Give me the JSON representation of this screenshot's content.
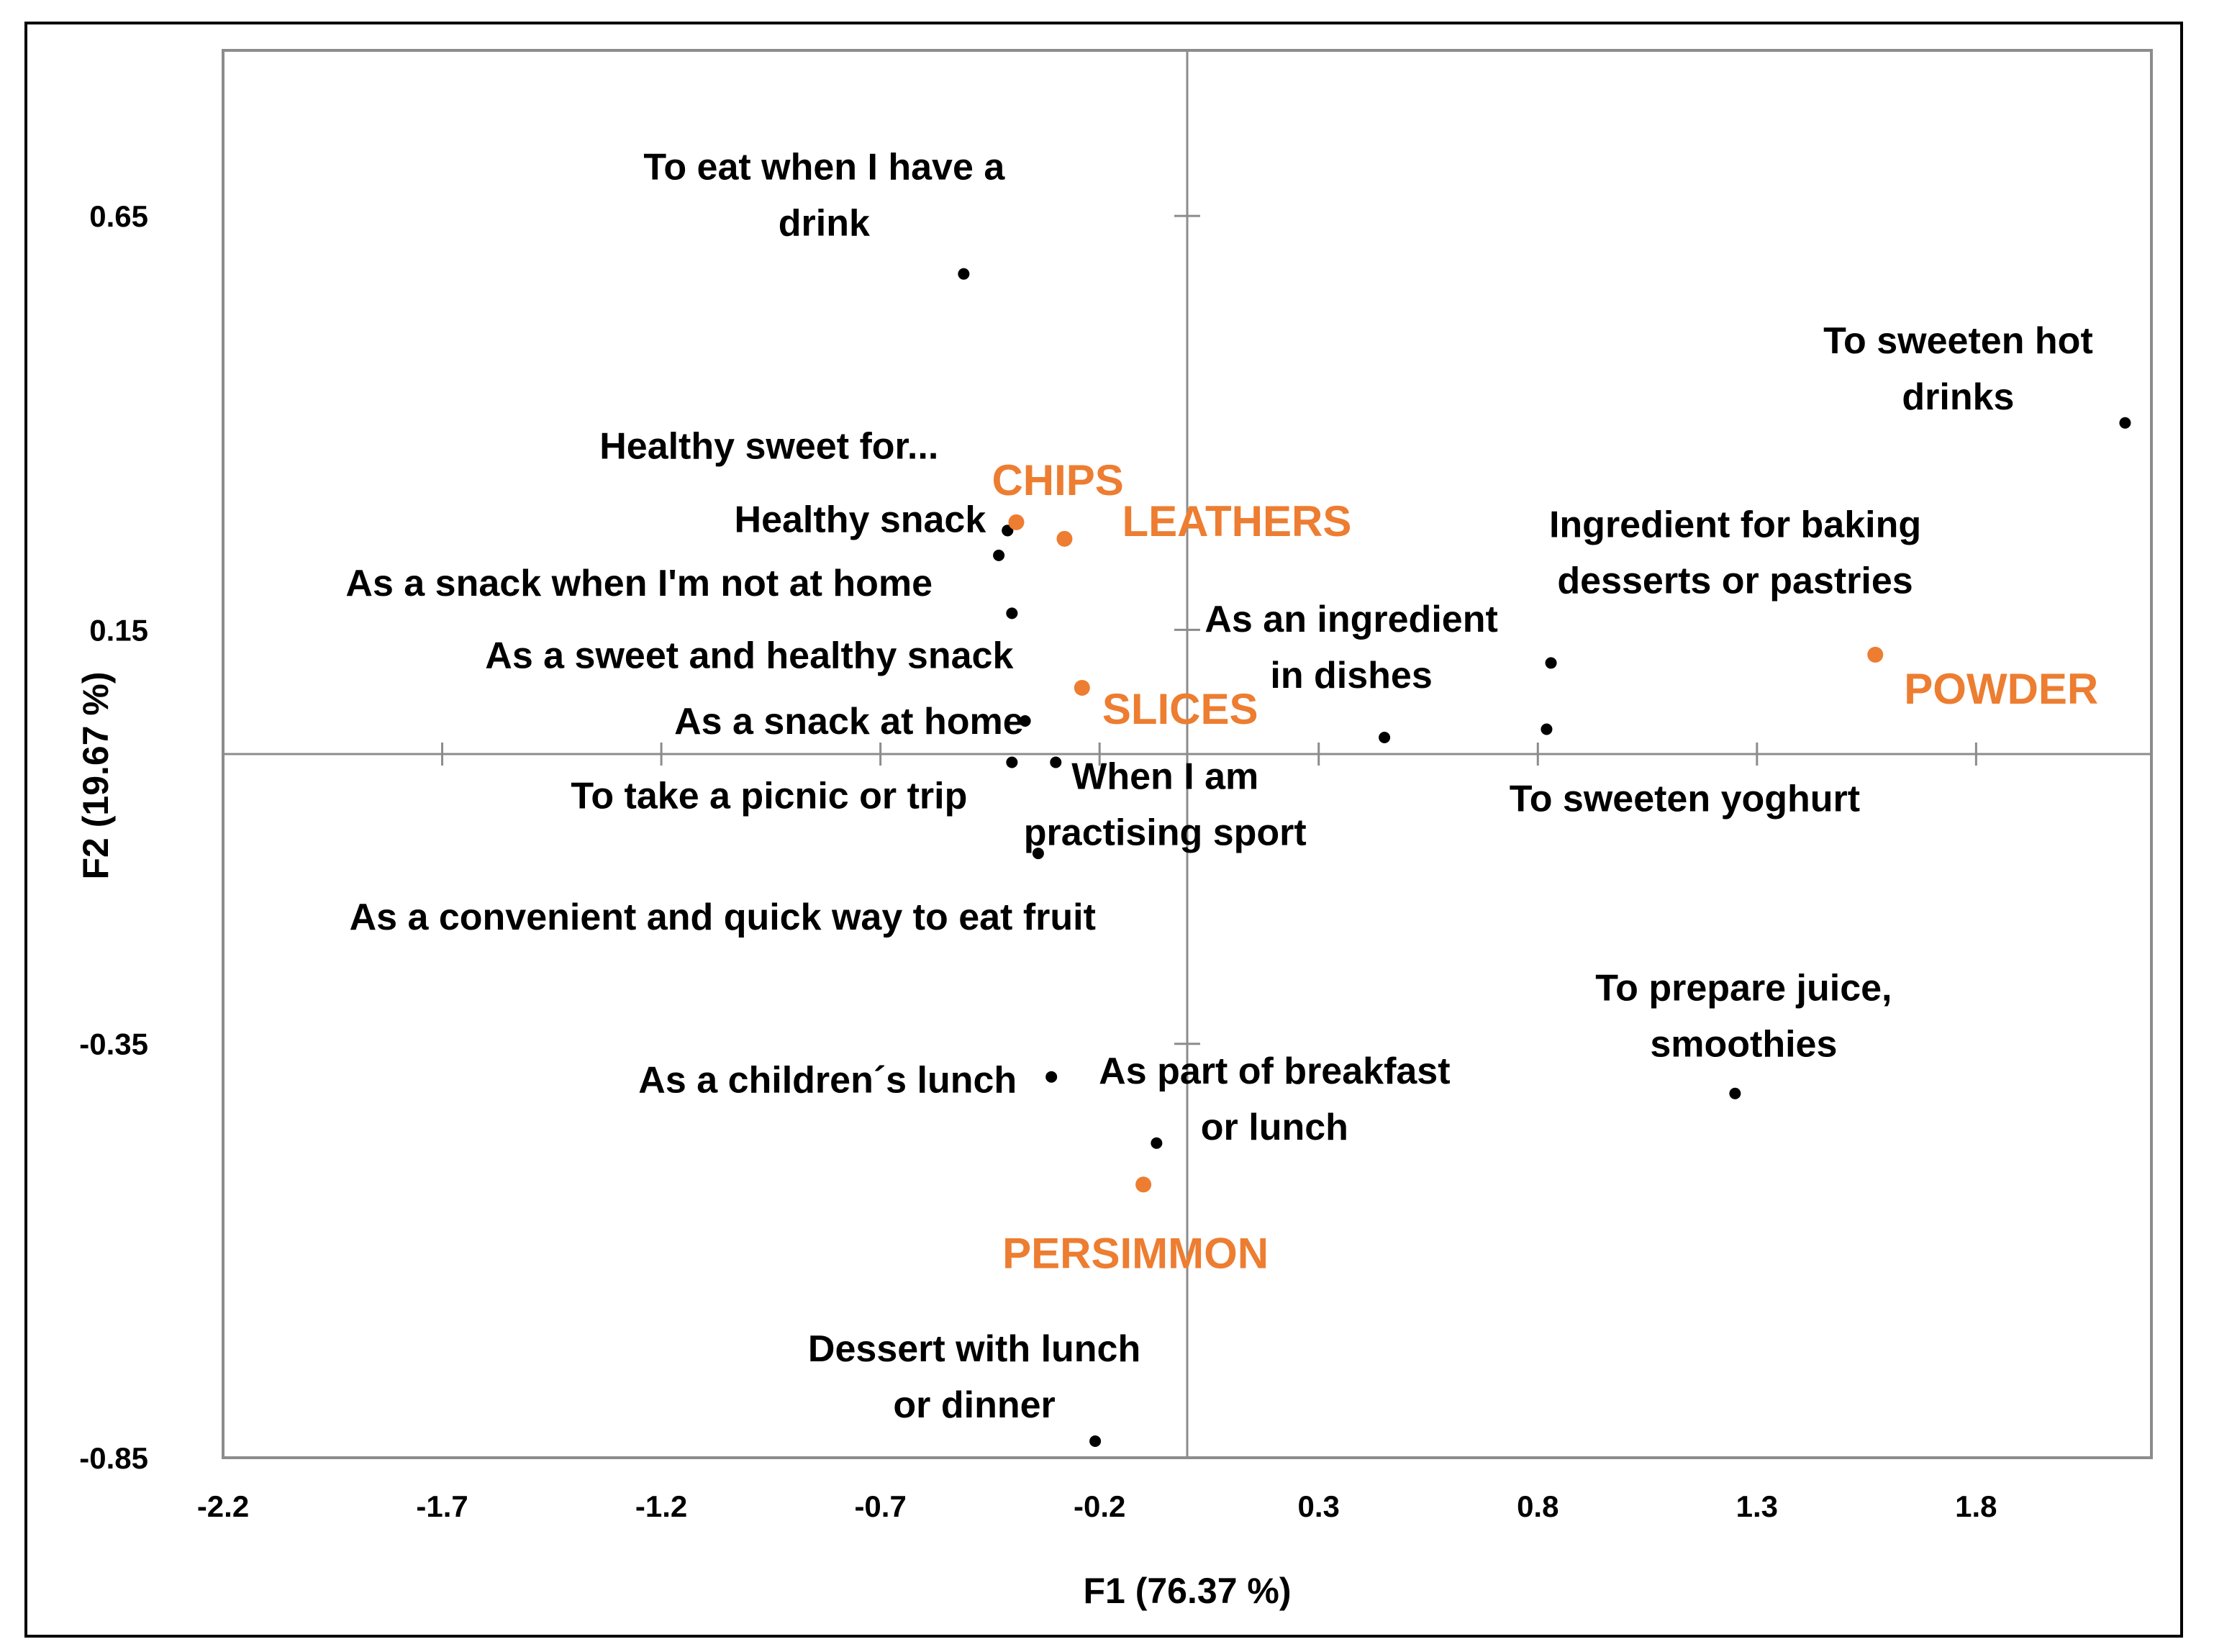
{
  "chart_data": {
    "type": "scatter",
    "xlabel": "F1 (76.37 %)",
    "ylabel": "F2 (19.67 %)",
    "xlim": [
      -2.2,
      2.2
    ],
    "ylim": [
      -0.85,
      0.85
    ],
    "x_ticks": [
      -2.2,
      -1.7,
      -1.2,
      -0.7,
      -0.2,
      0.3,
      0.8,
      1.3,
      1.8
    ],
    "x_tick_labels": [
      "-2.2",
      "-1.7",
      "-1.2",
      "-0.7",
      "-0.2",
      "0.3",
      "0.8",
      "1.3",
      "1.8"
    ],
    "y_ticks": [
      0.65,
      0.15,
      -0.35,
      -0.85
    ],
    "y_tick_labels": [
      "0.65",
      "0.15",
      "-0.35",
      "-0.85"
    ],
    "colors": {
      "usage": "#000000",
      "product": "#ED7D31"
    },
    "series": [
      {
        "group": "usage",
        "points": [
          {
            "label": [
              "To eat when I have a",
              "drink"
            ],
            "x": -0.51,
            "y": 0.58
          },
          {
            "label": [
              "To sweeten hot",
              "drinks"
            ],
            "x": 2.14,
            "y": 0.4
          },
          {
            "label": [
              "Healthy sweet for..."
            ],
            "x": -0.41,
            "y": 0.27
          },
          {
            "label": [
              "Healthy snack"
            ],
            "x": -0.41,
            "y": 0.27
          },
          {
            "label": [
              "As a snack when I'm not at home"
            ],
            "x": -0.43,
            "y": 0.24
          },
          {
            "label": [
              "As a sweet and healthy snack"
            ],
            "x": -0.4,
            "y": 0.17
          },
          {
            "label": [
              "As a snack at home"
            ],
            "x": -0.37,
            "y": 0.04
          },
          {
            "label": [
              "To take a picnic or trip"
            ],
            "x": -0.4,
            "y": -0.01
          },
          {
            "label": [
              "When I am",
              "practising sport"
            ],
            "x": -0.3,
            "y": -0.01
          },
          {
            "label": [
              "As a convenient and quick way to eat fruit"
            ],
            "x": -0.34,
            "y": -0.12
          },
          {
            "label": [
              "Ingredient for baking",
              "desserts or pastries"
            ],
            "x": 0.83,
            "y": 0.11
          },
          {
            "label": [
              "As an ingredient",
              "in dishes"
            ],
            "x": 0.45,
            "y": 0.02
          },
          {
            "label": [
              "To sweeten yoghurt"
            ],
            "x": 0.82,
            "y": 0.03
          },
          {
            "label": [
              "To prepare juice,",
              "smoothies"
            ],
            "x": 1.25,
            "y": -0.41
          },
          {
            "label": [
              "As a children´s lunch"
            ],
            "x": -0.31,
            "y": -0.39
          },
          {
            "label": [
              "As part of breakfast",
              "or lunch"
            ],
            "x": -0.07,
            "y": -0.47
          },
          {
            "label": [
              "Dessert with lunch",
              "or dinner"
            ],
            "x": -0.21,
            "y": -0.83
          }
        ]
      },
      {
        "group": "product",
        "points": [
          {
            "label": [
              "CHIPS"
            ],
            "x": -0.39,
            "y": 0.28
          },
          {
            "label": [
              "LEATHERS"
            ],
            "x": -0.28,
            "y": 0.26
          },
          {
            "label": [
              "SLICES"
            ],
            "x": -0.24,
            "y": 0.08
          },
          {
            "label": [
              "POWDER"
            ],
            "x": 1.57,
            "y": 0.12
          },
          {
            "label": [
              "PERSIMMON"
            ],
            "x": -0.1,
            "y": -0.52
          }
        ]
      }
    ]
  }
}
